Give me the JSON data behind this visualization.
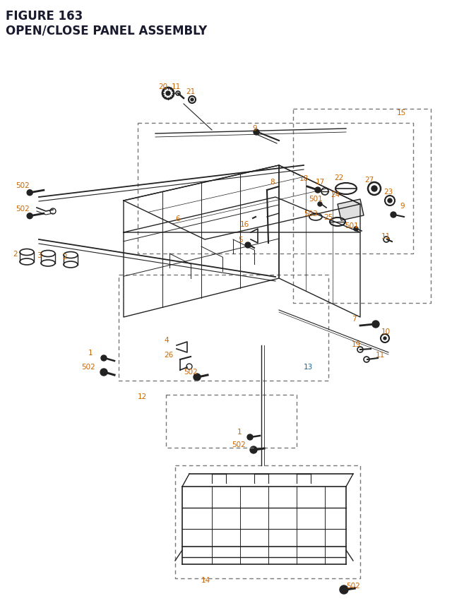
{
  "title_line1": "FIGURE 163",
  "title_line2": "OPEN/CLOSE PANEL ASSEMBLY",
  "title_color": "#1a1a2e",
  "title_fontsize": 12,
  "bg_color": "#ffffff",
  "label_color_orange": "#cc6600",
  "label_color_blue": "#1a6699",
  "label_color_dark": "#1a1a2e"
}
